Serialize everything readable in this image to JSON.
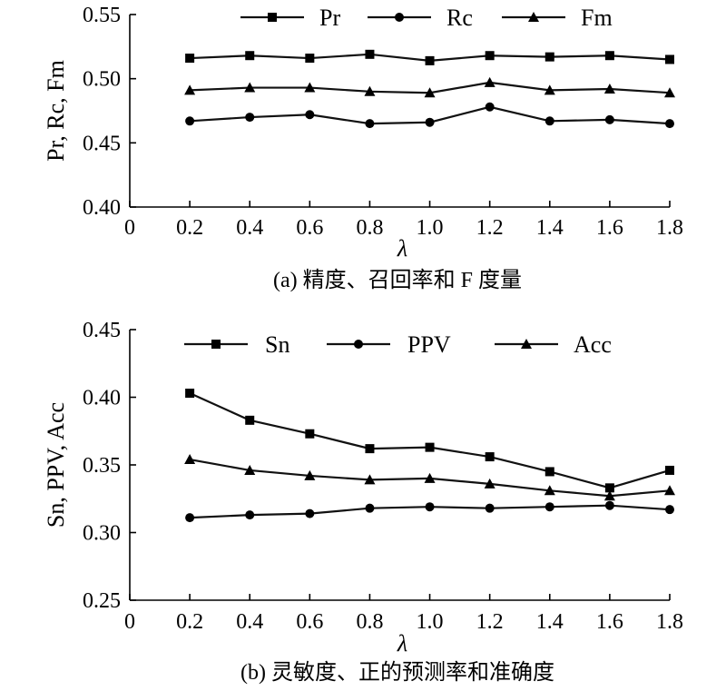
{
  "chart_data": [
    {
      "type": "line",
      "title": "",
      "caption": "(a) 精度、召回率和 F 度量",
      "xlabel": "λ",
      "ylabel": "Pr, Rc, Fm",
      "x": [
        0.2,
        0.4,
        0.6,
        0.8,
        1.0,
        1.2,
        1.4,
        1.6,
        1.8
      ],
      "xlim": [
        0,
        1.8
      ],
      "ylim": [
        0.4,
        0.55
      ],
      "xticks": [
        "0",
        "0.2",
        "0.4",
        "0.6",
        "0.8",
        "1.0",
        "1.2",
        "1.4",
        "1.6",
        "1.8"
      ],
      "yticks": [
        "0.40",
        "0.45",
        "0.50",
        "0.55"
      ],
      "grid": false,
      "legend_position": "top",
      "series": [
        {
          "name": "Pr",
          "marker": "square",
          "values": [
            0.516,
            0.518,
            0.516,
            0.519,
            0.514,
            0.518,
            0.517,
            0.518,
            0.515
          ]
        },
        {
          "name": "Rc",
          "marker": "circle",
          "values": [
            0.467,
            0.47,
            0.472,
            0.465,
            0.466,
            0.478,
            0.467,
            0.468,
            0.465
          ]
        },
        {
          "name": "Fm",
          "marker": "triangle",
          "values": [
            0.491,
            0.493,
            0.493,
            0.49,
            0.489,
            0.497,
            0.491,
            0.492,
            0.489
          ]
        }
      ]
    },
    {
      "type": "line",
      "title": "",
      "caption": "(b) 灵敏度、正的预测率和准确度",
      "xlabel": "λ",
      "ylabel": "Sn, PPV, Acc",
      "x": [
        0.2,
        0.4,
        0.6,
        0.8,
        1.0,
        1.2,
        1.4,
        1.6,
        1.8
      ],
      "xlim": [
        0,
        1.8
      ],
      "ylim": [
        0.25,
        0.45
      ],
      "xticks": [
        "0",
        "0.2",
        "0.4",
        "0.6",
        "0.8",
        "1.0",
        "1.2",
        "1.4",
        "1.6",
        "1.8"
      ],
      "yticks": [
        "0.25",
        "0.30",
        "0.35",
        "0.40",
        "0.45"
      ],
      "grid": false,
      "legend_position": "top",
      "series": [
        {
          "name": "Sn",
          "marker": "square",
          "values": [
            0.403,
            0.383,
            0.373,
            0.362,
            0.363,
            0.356,
            0.345,
            0.333,
            0.346
          ]
        },
        {
          "name": "PPV",
          "marker": "circle",
          "values": [
            0.311,
            0.313,
            0.314,
            0.318,
            0.319,
            0.318,
            0.319,
            0.32,
            0.317
          ]
        },
        {
          "name": "Acc",
          "marker": "triangle",
          "values": [
            0.354,
            0.346,
            0.342,
            0.339,
            0.34,
            0.336,
            0.331,
            0.327,
            0.331
          ]
        }
      ]
    }
  ]
}
